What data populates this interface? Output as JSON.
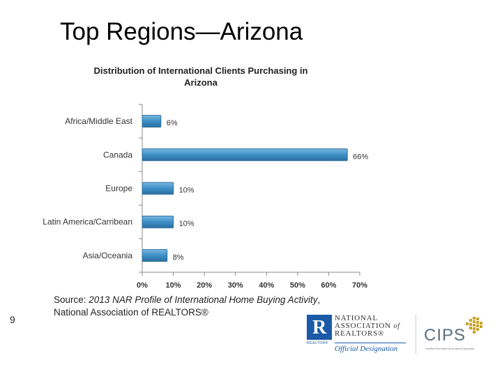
{
  "slide": {
    "title": "Top Regions—Arizona",
    "page_number": "9",
    "source_prefix": "Source: ",
    "source_title": "2013 NAR Profile of International Home Buying Activity",
    "source_suffix": ",",
    "source_line2": "National Association of REALTORS®"
  },
  "logos": {
    "nar_r": "R",
    "nar_realtor": "REALTOR®",
    "nar_line1": "NATIONAL",
    "nar_line2": "ASSOCIATION",
    "nar_of": "of",
    "nar_line3": "REALTORS®",
    "nar_designation": "Official Designation",
    "cips": "CIPS",
    "cips_tagline": "certified international property specialist"
  },
  "colors": {
    "bar_fill": "#3d8fc6",
    "bar_stroke": "#2a6f9f",
    "axis": "#888888",
    "nar_blue": "#1a5aa6",
    "cips_gold": "#c9a227"
  },
  "chart_data": {
    "type": "bar",
    "orientation": "horizontal",
    "title_line1": "Distribution of International Clients Purchasing in",
    "title_line2": "Arizona",
    "categories": [
      "Africa/Middle East",
      "Canada",
      "Europe",
      "Latin America/Carribean",
      "Asia/Oceania"
    ],
    "values": [
      6,
      66,
      10,
      10,
      8
    ],
    "value_labels": [
      "6%",
      "66%",
      "10%",
      "10%",
      "8%"
    ],
    "xlim": [
      0,
      70
    ],
    "x_ticks": [
      "0%",
      "10%",
      "20%",
      "30%",
      "40%",
      "50%",
      "60%",
      "70%"
    ],
    "grid": false,
    "legend": "none"
  }
}
